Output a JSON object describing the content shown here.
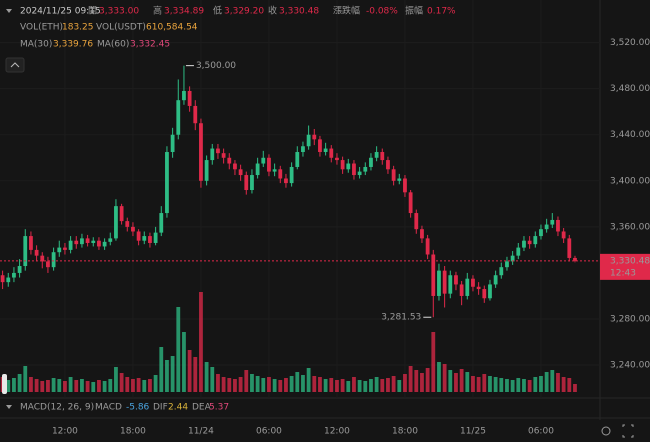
{
  "header": {
    "datetime": "2024/11/25 09:15",
    "open_label": "開",
    "open": "3,333.00",
    "high_label": "高",
    "high": "3,334.89",
    "low_label": "低",
    "low": "3,329.20",
    "close_label": "收",
    "close": "3,330.48",
    "change_label": "漲跌幅",
    "change": "-0.08%",
    "amplitude_label": "振幅",
    "amplitude": "0.17%",
    "vol_eth_label": "VOL(ETH)",
    "vol_eth": "183.25",
    "vol_usdt_label": "VOL(USDT)",
    "vol_usdt": "610,584.54",
    "ma30_label": "MA(30)",
    "ma30": "3,339.76",
    "ma60_label": "MA(60)",
    "ma60": "3,332.45",
    "macd_title": "MACD(12, 26, 9)",
    "macd_label": "MACD",
    "macd": "-5.86",
    "dif_label": "DIF",
    "dif": "2.44",
    "dea_label": "DEA",
    "dea": "5.37"
  },
  "chart_data": {
    "type": "candlestick",
    "up_color": "#2ebd85",
    "down_color": "#e0294a",
    "categories": [
      null,
      null,
      null,
      null,
      null,
      null,
      null,
      null,
      null,
      null,
      null,
      "12:00",
      null,
      null,
      null,
      null,
      null,
      null,
      null,
      null,
      null,
      null,
      null,
      "18:00",
      null,
      null,
      null,
      null,
      null,
      null,
      null,
      null,
      null,
      null,
      null,
      "11/24",
      null,
      null,
      null,
      null,
      null,
      null,
      null,
      null,
      null,
      null,
      null,
      "06:00",
      null,
      null,
      null,
      null,
      null,
      null,
      null,
      null,
      null,
      null,
      null,
      "12:00",
      null,
      null,
      null,
      null,
      null,
      null,
      null,
      null,
      null,
      null,
      null,
      "18:00",
      null,
      null,
      null,
      null,
      null,
      null,
      null,
      null,
      null,
      null,
      null,
      "11/25",
      null,
      null,
      null,
      null,
      null,
      null,
      null,
      null,
      null,
      null,
      null,
      "06:00",
      null,
      null,
      null,
      null,
      null,
      null
    ],
    "open": [
      3318,
      3312,
      3316,
      3320,
      3326,
      3352,
      3340,
      3335,
      3330,
      3325,
      3338,
      3342,
      3340,
      3348,
      3345,
      3350,
      3346,
      3348,
      3343,
      3347,
      3350,
      3378,
      3365,
      3360,
      3356,
      3348,
      3352,
      3346,
      3355,
      3372,
      3425,
      3440,
      3470,
      3478,
      3465,
      3450,
      3400,
      3418,
      3428,
      3424,
      3420,
      3415,
      3410,
      3405,
      3392,
      3405,
      3415,
      3420,
      3408,
      3410,
      3402,
      3398,
      3412,
      3425,
      3430,
      3440,
      3436,
      3425,
      3428,
      3420,
      3418,
      3410,
      3415,
      3405,
      3408,
      3412,
      3420,
      3425,
      3418,
      3410,
      3400,
      3402,
      3390,
      3372,
      3358,
      3350,
      3336,
      3300,
      3322,
      3302,
      3318,
      3310,
      3300,
      3315,
      3308,
      3306,
      3298,
      3310,
      3318,
      3325,
      3330,
      3335,
      3342,
      3348,
      3345,
      3352,
      3358,
      3362,
      3366,
      3356,
      3350,
      3333
    ],
    "high": [
      3322,
      3320,
      3325,
      3332,
      3358,
      3356,
      3344,
      3338,
      3334,
      3342,
      3348,
      3346,
      3352,
      3352,
      3354,
      3353,
      3351,
      3351,
      3350,
      3355,
      3384,
      3380,
      3368,
      3364,
      3358,
      3356,
      3355,
      3360,
      3378,
      3430,
      3446,
      3488,
      3500,
      3482,
      3470,
      3454,
      3422,
      3432,
      3432,
      3428,
      3424,
      3418,
      3414,
      3408,
      3410,
      3420,
      3426,
      3423,
      3415,
      3413,
      3406,
      3416,
      3430,
      3434,
      3448,
      3445,
      3439,
      3433,
      3431,
      3424,
      3421,
      3419,
      3418,
      3412,
      3416,
      3424,
      3430,
      3428,
      3421,
      3413,
      3406,
      3405,
      3392,
      3375,
      3361,
      3353,
      3340,
      3328,
      3326,
      3322,
      3321,
      3313,
      3320,
      3318,
      3312,
      3309,
      3314,
      3322,
      3329,
      3334,
      3339,
      3346,
      3352,
      3352,
      3356,
      3362,
      3367,
      3372,
      3369,
      3359,
      3353,
      3334.89
    ],
    "low": [
      3306,
      3308,
      3312,
      3316,
      3322,
      3336,
      3330,
      3324,
      3320,
      3322,
      3334,
      3336,
      3337,
      3341,
      3342,
      3343,
      3343,
      3340,
      3340,
      3344,
      3348,
      3362,
      3356,
      3352,
      3344,
      3345,
      3342,
      3344,
      3352,
      3368,
      3420,
      3436,
      3466,
      3460,
      3444,
      3394,
      3396,
      3414,
      3419,
      3415,
      3410,
      3405,
      3400,
      3388,
      3389,
      3402,
      3412,
      3404,
      3404,
      3398,
      3394,
      3395,
      3410,
      3421,
      3427,
      3431,
      3421,
      3422,
      3416,
      3414,
      3406,
      3407,
      3401,
      3402,
      3405,
      3409,
      3417,
      3414,
      3406,
      3396,
      3397,
      3386,
      3368,
      3354,
      3346,
      3332,
      3281.53,
      3296,
      3290,
      3298,
      3305,
      3292,
      3297,
      3304,
      3301,
      3294,
      3296,
      3307,
      3315,
      3322,
      3327,
      3332,
      3339,
      3341,
      3342,
      3349,
      3355,
      3359,
      3352,
      3346,
      3330,
      3329.2
    ],
    "close": [
      3312,
      3316,
      3320,
      3326,
      3352,
      3340,
      3335,
      3330,
      3325,
      3338,
      3342,
      3340,
      3348,
      3345,
      3350,
      3346,
      3348,
      3343,
      3347,
      3350,
      3378,
      3365,
      3360,
      3356,
      3348,
      3352,
      3346,
      3355,
      3372,
      3425,
      3440,
      3470,
      3478,
      3465,
      3450,
      3400,
      3418,
      3428,
      3424,
      3420,
      3415,
      3410,
      3405,
      3392,
      3405,
      3415,
      3420,
      3408,
      3410,
      3402,
      3398,
      3412,
      3425,
      3430,
      3440,
      3436,
      3425,
      3428,
      3420,
      3418,
      3410,
      3415,
      3405,
      3408,
      3412,
      3420,
      3425,
      3418,
      3410,
      3400,
      3402,
      3390,
      3372,
      3358,
      3350,
      3336,
      3300,
      3322,
      3302,
      3318,
      3310,
      3300,
      3315,
      3308,
      3306,
      3298,
      3310,
      3318,
      3325,
      3330,
      3335,
      3342,
      3348,
      3345,
      3352,
      3358,
      3362,
      3366,
      3356,
      3350,
      3333,
      3330.48
    ],
    "volume": [
      1500,
      1200,
      1400,
      1800,
      2600,
      1500,
      1300,
      1100,
      1200,
      1400,
      1300,
      1100,
      1500,
      1200,
      1300,
      1100,
      1000,
      1200,
      1100,
      1300,
      2500,
      1900,
      1500,
      1300,
      1400,
      1200,
      1300,
      1700,
      4500,
      3200,
      3600,
      8500,
      6000,
      4200,
      3500,
      10000,
      3000,
      2500,
      1800,
      1500,
      1400,
      1300,
      1500,
      2200,
      1800,
      1600,
      1400,
      1500,
      1300,
      1200,
      1400,
      1600,
      2000,
      1700,
      2400,
      1600,
      1500,
      1300,
      1400,
      1200,
      1300,
      1100,
      1500,
      1200,
      1100,
      1300,
      1500,
      1300,
      1400,
      1600,
      1200,
      1800,
      2600,
      2200,
      1900,
      2400,
      6000,
      3000,
      2800,
      2200,
      1900,
      2300,
      2000,
      1600,
      1500,
      1800,
      1600,
      1500,
      1400,
      1300,
      1200,
      1400,
      1300,
      1200,
      1500,
      1600,
      2000,
      2200,
      1900,
      1500,
      1400,
      800
    ],
    "ylim": [
      3214,
      3557
    ],
    "yticks": [
      {
        "value": 3520,
        "label": "3,520.00"
      },
      {
        "value": 3480,
        "label": "3,480.00"
      },
      {
        "value": 3440,
        "label": "3,440.00"
      },
      {
        "value": 3400,
        "label": "3,400.00"
      },
      {
        "value": 3360,
        "label": "3,360.00"
      },
      {
        "value": 3280,
        "label": "3,280.00"
      },
      {
        "value": 3240,
        "label": "3,240.00"
      }
    ],
    "max_label": "3,500.00",
    "min_label": "3,281.53",
    "last_price": {
      "value": 3330.48,
      "label": "3,330.48"
    },
    "countdown": "12:43"
  }
}
